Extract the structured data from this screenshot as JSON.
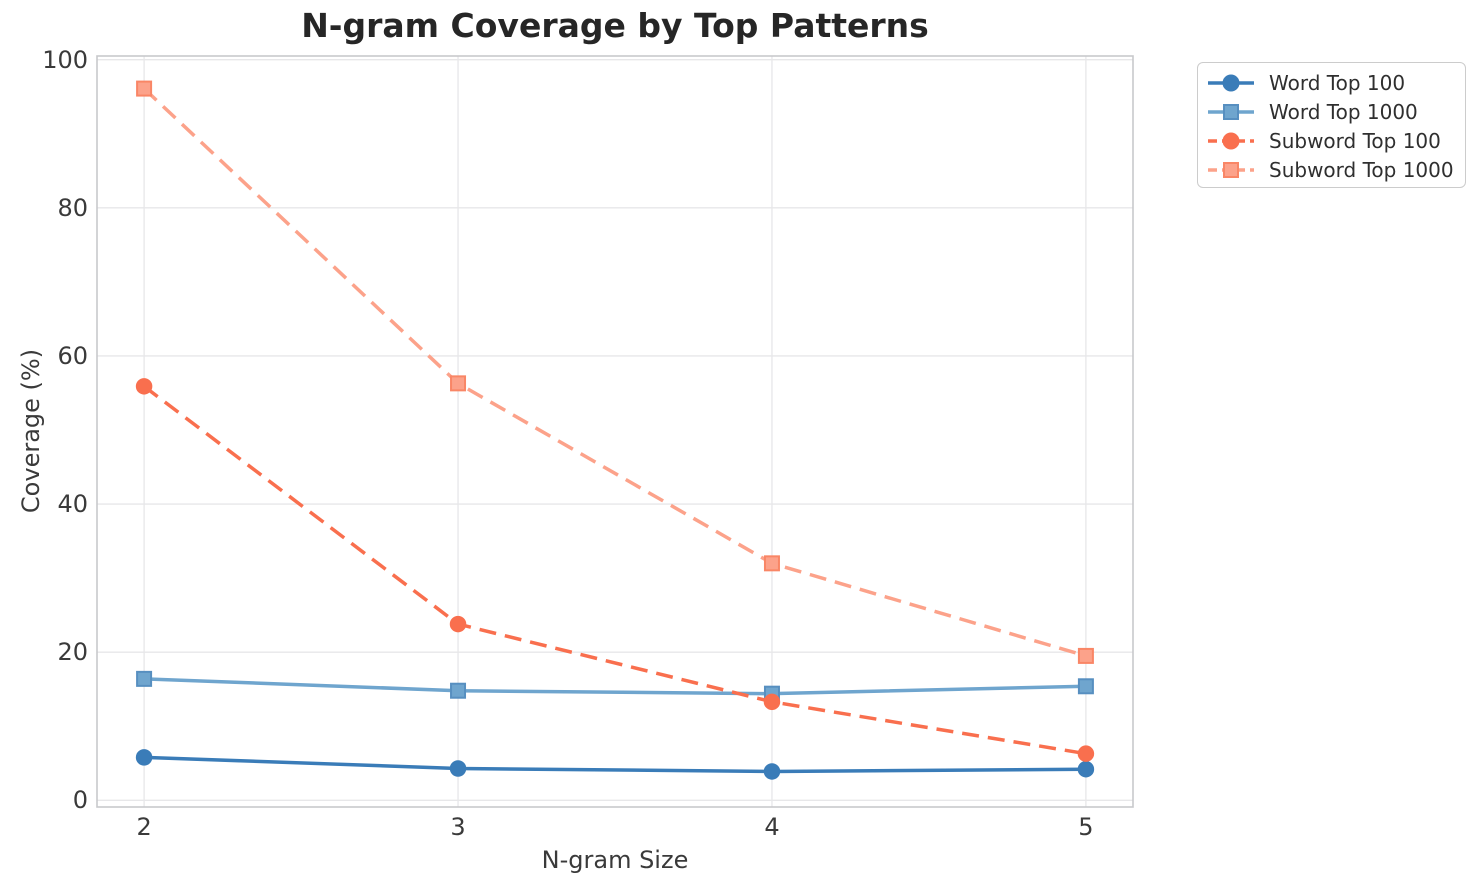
{
  "chart_data": {
    "type": "line",
    "title": "N-gram Coverage by Top Patterns",
    "xlabel": "N-gram Size",
    "ylabel": "Coverage (%)",
    "x": [
      2,
      3,
      4,
      5
    ],
    "x_tick_labels": [
      "2",
      "3",
      "4",
      "5"
    ],
    "y_ticks": [
      0,
      20,
      40,
      60,
      80,
      100
    ],
    "y_tick_labels": [
      "0",
      "20",
      "40",
      "60",
      "80",
      "100"
    ],
    "xlim": [
      1.85,
      5.15
    ],
    "ylim": [
      -0.9,
      100.5
    ],
    "grid": true,
    "legend_position": "outside-upper-right",
    "series": [
      {
        "name": "Word Top 100",
        "values": [
          5.8,
          4.3,
          3.9,
          4.2
        ],
        "color": "#3a7cb8",
        "edge_color": "#3a7cb8",
        "line_style": "solid",
        "marker": "circle"
      },
      {
        "name": "Word Top 1000",
        "values": [
          16.4,
          14.8,
          14.4,
          15.4
        ],
        "color": "#6fa5ce",
        "edge_color": "#578fc0",
        "line_style": "solid",
        "marker": "square"
      },
      {
        "name": "Subword Top 100",
        "values": [
          55.9,
          23.8,
          13.3,
          6.3
        ],
        "color": "#f96f4e",
        "edge_color": "#f96f4e",
        "line_style": "dashed",
        "marker": "circle"
      },
      {
        "name": "Subword Top 1000",
        "values": [
          96.1,
          56.3,
          32.0,
          19.5
        ],
        "color": "#fca28a",
        "edge_color": "#f98666",
        "line_style": "dashed",
        "marker": "square"
      }
    ]
  },
  "style_colors": {
    "background": "#ffffff",
    "grid": "#e7e7e9",
    "spine": "#c8c9cc",
    "title_text": "#262626",
    "axis_text": "#3a3a3a"
  }
}
